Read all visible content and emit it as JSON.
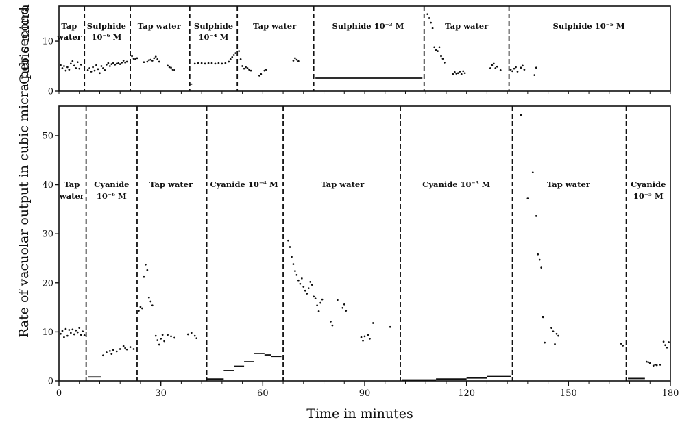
{
  "chart_data": [
    {
      "type": "scatter",
      "ylabel": "Cubic micra per second",
      "ylim": [
        0,
        17
      ],
      "xlim": [
        0,
        180
      ],
      "yticks": [
        0,
        10
      ],
      "grid": false,
      "dividers": [
        7.5,
        21,
        38.5,
        52.5,
        75,
        107.5,
        132.5
      ],
      "segments": [
        {
          "lines": [
            "Tap",
            "water"
          ],
          "x": 3
        },
        {
          "lines": [
            "Sulphide",
            "10⁻⁶ M"
          ],
          "x": 14
        },
        {
          "lines": [
            "Tap water"
          ],
          "x": 29.5
        },
        {
          "lines": [
            "Sulphide",
            "10⁻⁴ M"
          ],
          "x": 45.5
        },
        {
          "lines": [
            "Tap water"
          ],
          "x": 63.5
        },
        {
          "lines": [
            "Sulphide 10⁻³ M"
          ],
          "x": 91
        },
        {
          "lines": [
            "Tap water"
          ],
          "x": 120
        },
        {
          "lines": [
            "Sulphide 10⁻⁵ M"
          ],
          "x": 156
        }
      ],
      "points": [
        [
          0.5,
          5.2
        ],
        [
          1,
          4.6
        ],
        [
          1.5,
          5.0
        ],
        [
          2,
          4.1
        ],
        [
          2.5,
          4.8
        ],
        [
          3,
          4.3
        ],
        [
          3.5,
          5.5
        ],
        [
          4,
          6.0
        ],
        [
          4.5,
          5.1
        ],
        [
          5,
          4.6
        ],
        [
          5.5,
          5.8
        ],
        [
          6,
          4.5
        ],
        [
          6.5,
          5.3
        ],
        [
          8.5,
          4.2
        ],
        [
          9,
          4.6
        ],
        [
          9.5,
          3.9
        ],
        [
          10,
          4.8
        ],
        [
          10.5,
          4.1
        ],
        [
          11,
          5.2
        ],
        [
          11.5,
          4.4
        ],
        [
          12,
          3.6
        ],
        [
          12.5,
          5.0
        ],
        [
          13,
          4.6
        ],
        [
          13.5,
          4.2
        ],
        [
          14,
          5.3
        ],
        [
          14.5,
          5.6
        ],
        [
          15,
          5.0
        ],
        [
          15.5,
          5.4
        ],
        [
          16,
          5.6
        ],
        [
          16.5,
          5.3
        ],
        [
          17,
          5.5
        ],
        [
          17.5,
          5.6
        ],
        [
          18,
          5.4
        ],
        [
          18.5,
          5.7
        ],
        [
          19,
          6.1
        ],
        [
          19.5,
          5.7
        ],
        [
          20,
          5.9
        ],
        [
          21.5,
          7.0
        ],
        [
          22,
          6.5
        ],
        [
          22.5,
          6.4
        ],
        [
          23,
          6.6
        ],
        [
          25,
          5.8
        ],
        [
          26,
          5.9
        ],
        [
          26.5,
          6.2
        ],
        [
          27,
          6.3
        ],
        [
          27.5,
          6.1
        ],
        [
          28,
          6.6
        ],
        [
          28.5,
          6.9
        ],
        [
          29,
          6.4
        ],
        [
          29.5,
          5.9
        ],
        [
          32,
          5.1
        ],
        [
          32.5,
          4.8
        ],
        [
          33,
          4.7
        ],
        [
          33.5,
          4.3
        ],
        [
          34,
          4.2
        ],
        [
          40,
          5.5
        ],
        [
          41,
          5.6
        ],
        [
          42,
          5.6
        ],
        [
          43,
          5.5
        ],
        [
          44,
          5.6
        ],
        [
          45,
          5.6
        ],
        [
          46,
          5.5
        ],
        [
          47,
          5.6
        ],
        [
          48,
          5.5
        ],
        [
          49,
          5.6
        ],
        [
          50,
          5.9
        ],
        [
          50.5,
          6.4
        ],
        [
          51,
          6.8
        ],
        [
          51.5,
          7.2
        ],
        [
          52,
          7.6
        ],
        [
          53,
          8.0
        ],
        [
          53.5,
          6.4
        ],
        [
          54,
          5.0
        ],
        [
          54.5,
          4.5
        ],
        [
          55,
          4.8
        ],
        [
          55.5,
          4.6
        ],
        [
          56,
          4.3
        ],
        [
          56.5,
          4.1
        ],
        [
          59,
          3.1
        ],
        [
          59.5,
          3.4
        ],
        [
          60.5,
          4.1
        ],
        [
          61,
          4.3
        ],
        [
          69,
          6.1
        ],
        [
          69.5,
          6.6
        ],
        [
          70,
          6.3
        ],
        [
          70.5,
          6.0
        ],
        [
          108.5,
          15.4
        ],
        [
          109,
          14.6
        ],
        [
          109.5,
          13.7
        ],
        [
          110,
          12.6
        ],
        [
          110.5,
          8.8
        ],
        [
          111,
          8.2
        ],
        [
          111.5,
          8.0
        ],
        [
          112,
          8.8
        ],
        [
          112.5,
          7.0
        ],
        [
          113,
          6.5
        ],
        [
          113.5,
          5.7
        ],
        [
          116,
          3.4
        ],
        [
          116.5,
          3.8
        ],
        [
          117,
          3.5
        ],
        [
          117.5,
          3.6
        ],
        [
          118,
          3.9
        ],
        [
          118.5,
          3.4
        ],
        [
          119,
          4.0
        ],
        [
          119.5,
          3.6
        ],
        [
          127,
          4.6
        ],
        [
          127.5,
          5.2
        ],
        [
          128,
          5.5
        ],
        [
          128.5,
          4.6
        ],
        [
          129,
          4.9
        ],
        [
          130,
          4.2
        ],
        [
          133,
          4.3
        ],
        [
          133.5,
          4.0
        ],
        [
          134,
          4.5
        ],
        [
          134.5,
          4.8
        ],
        [
          135,
          3.9
        ],
        [
          136,
          4.7
        ],
        [
          136.5,
          5.1
        ],
        [
          137,
          4.3
        ],
        [
          140,
          3.2
        ],
        [
          140.5,
          4.7
        ]
      ],
      "steps": [
        [
          38.5,
          39.2,
          1.4
        ],
        [
          75.5,
          107,
          2.6
        ]
      ],
      "step_rise": [
        [
          75.5,
          2.4
        ],
        [
          107,
          2.8
        ]
      ]
    },
    {
      "type": "scatter",
      "ylabel": "Rate of vacuolar output in cubic micra per second",
      "xlabel": "Time in minutes",
      "ylim": [
        0,
        56
      ],
      "xlim": [
        0,
        180
      ],
      "yticks": [
        0,
        10,
        20,
        30,
        40,
        50
      ],
      "xticks": [
        0,
        30,
        60,
        90,
        120,
        150,
        180
      ],
      "grid": false,
      "dividers": [
        8,
        23,
        43.5,
        66,
        100.5,
        133.5,
        167
      ],
      "segments": [
        {
          "lines": [
            "Tap",
            "water"
          ],
          "x": 3.8
        },
        {
          "lines": [
            "Cyanide",
            "10⁻⁶ M"
          ],
          "x": 15.5
        },
        {
          "lines": [
            "Tap water"
          ],
          "x": 33
        },
        {
          "lines": [
            "Cyanide 10⁻⁴ M"
          ],
          "x": 54.5
        },
        {
          "lines": [
            "Tap water"
          ],
          "x": 83.5
        },
        {
          "lines": [
            "Cyanide 10⁻³ M"
          ],
          "x": 117
        },
        {
          "lines": [
            "Tap water"
          ],
          "x": 150
        },
        {
          "lines": [
            "Cyanide",
            "10⁻⁵ M"
          ],
          "x": 173.5
        }
      ],
      "points": [
        [
          0.5,
          9.6
        ],
        [
          1,
          10.2
        ],
        [
          1.5,
          8.9
        ],
        [
          2,
          10.6
        ],
        [
          2.5,
          9.2
        ],
        [
          3,
          10.4
        ],
        [
          3.5,
          9.8
        ],
        [
          4,
          10.5
        ],
        [
          4.5,
          9.5
        ],
        [
          5,
          10.3
        ],
        [
          5.5,
          9.9
        ],
        [
          6,
          10.8
        ],
        [
          6.5,
          9.4
        ],
        [
          7,
          10.1
        ],
        [
          7.5,
          9.3
        ],
        [
          13,
          5.2
        ],
        [
          14,
          5.8
        ],
        [
          15,
          6.1
        ],
        [
          15.5,
          5.5
        ],
        [
          16,
          6.3
        ],
        [
          17,
          6.0
        ],
        [
          18,
          6.5
        ],
        [
          19,
          7.1
        ],
        [
          19.5,
          6.7
        ],
        [
          20,
          6.4
        ],
        [
          21,
          6.9
        ],
        [
          22,
          6.5
        ],
        [
          23.5,
          14.3
        ],
        [
          24,
          15.1
        ],
        [
          24.5,
          14.8
        ],
        [
          25,
          21.2
        ],
        [
          25.5,
          23.7
        ],
        [
          26,
          22.6
        ],
        [
          26.5,
          17.0
        ],
        [
          27,
          16.2
        ],
        [
          27.5,
          15.4
        ],
        [
          28.5,
          9.2
        ],
        [
          29,
          8.3
        ],
        [
          29.5,
          7.4
        ],
        [
          30,
          8.6
        ],
        [
          30.5,
          9.4
        ],
        [
          31,
          8.1
        ],
        [
          32,
          9.4
        ],
        [
          33,
          9.1
        ],
        [
          34,
          8.8
        ],
        [
          38,
          9.5
        ],
        [
          39,
          9.8
        ],
        [
          40,
          9.2
        ],
        [
          40.5,
          8.7
        ],
        [
          67.5,
          28.6
        ],
        [
          68,
          27.3
        ],
        [
          68.5,
          25.3
        ],
        [
          69,
          23.8
        ],
        [
          69.5,
          22.4
        ],
        [
          70,
          21.6
        ],
        [
          70.5,
          20.5
        ],
        [
          71,
          19.8
        ],
        [
          71.5,
          20.9
        ],
        [
          72,
          19.2
        ],
        [
          72.5,
          18.4
        ],
        [
          73,
          17.8
        ],
        [
          73.5,
          18.9
        ],
        [
          74,
          20.2
        ],
        [
          74.5,
          19.6
        ],
        [
          75,
          17.2
        ],
        [
          75.5,
          16.8
        ],
        [
          76,
          15.4
        ],
        [
          76.5,
          14.2
        ],
        [
          77,
          15.9
        ],
        [
          77.5,
          16.6
        ],
        [
          80,
          12.1
        ],
        [
          80.5,
          11.3
        ],
        [
          82,
          16.5
        ],
        [
          83.5,
          14.9
        ],
        [
          84,
          15.6
        ],
        [
          84.5,
          14.3
        ],
        [
          89,
          8.9
        ],
        [
          89.5,
          8.2
        ],
        [
          90,
          9.1
        ],
        [
          91,
          9.4
        ],
        [
          91.5,
          8.6
        ],
        [
          92.5,
          11.8
        ],
        [
          97.5,
          11.0
        ],
        [
          136,
          54.2
        ],
        [
          138,
          37.2
        ],
        [
          139.5,
          42.5
        ],
        [
          140.5,
          33.6
        ],
        [
          141,
          25.8
        ],
        [
          141.5,
          24.7
        ],
        [
          142,
          23.1
        ],
        [
          142.5,
          13.0
        ],
        [
          143,
          7.8
        ],
        [
          145,
          10.8
        ],
        [
          145.5,
          10.1
        ],
        [
          146,
          7.5
        ],
        [
          146.5,
          9.6
        ],
        [
          147,
          9.2
        ],
        [
          165.5,
          7.6
        ],
        [
          166,
          7.2
        ],
        [
          173,
          3.9
        ],
        [
          173.5,
          3.8
        ],
        [
          174,
          3.6
        ],
        [
          175,
          3.1
        ],
        [
          175.5,
          3.3
        ],
        [
          176,
          3.2
        ],
        [
          177,
          3.3
        ],
        [
          178,
          8.0
        ],
        [
          178.5,
          7.3
        ],
        [
          179,
          6.8
        ],
        [
          179.5,
          7.9
        ]
      ],
      "steps": [
        [
          8.5,
          12.5,
          0.8
        ],
        [
          43.5,
          48.5,
          0.4
        ],
        [
          48.5,
          51.5,
          2.1
        ],
        [
          51.5,
          54.5,
          3.0
        ],
        [
          54.5,
          57.5,
          3.9
        ],
        [
          57.5,
          60.5,
          5.6
        ],
        [
          60.5,
          62.5,
          5.3
        ],
        [
          62.5,
          65.5,
          5.0
        ],
        [
          101,
          111,
          0.2
        ],
        [
          111,
          120,
          0.4
        ],
        [
          120,
          126,
          0.6
        ],
        [
          126,
          133,
          0.9
        ],
        [
          167.5,
          172.5,
          0.5
        ]
      ]
    }
  ]
}
